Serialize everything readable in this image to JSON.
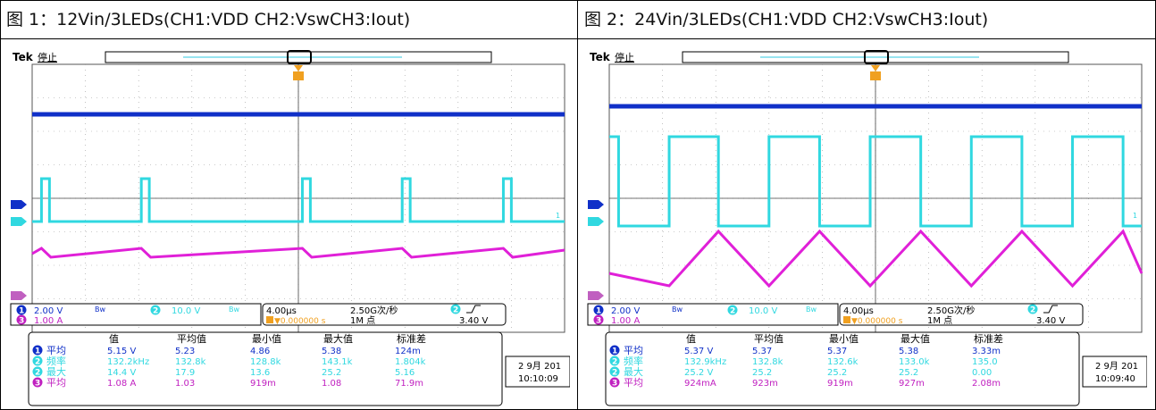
{
  "figures": [
    {
      "caption": "图 1：12Vin/3LEDs(CH1:VDD              CH2:VswCH3:Iout)",
      "scope": {
        "brand": "Tek",
        "state": "停止",
        "ch1_scale": "2.00 V",
        "ch2_scale": "10.0 V",
        "ch3_scale": "1.00 A",
        "timebase": "4.00µs",
        "trigger_pos": "▼0.000000 s",
        "sample_rate": "2.50G次/秒",
        "record_len": "1M 点",
        "trigger_level": "3.40 V",
        "date": "2 9月 201",
        "time": "10:10:09"
      },
      "meas_headers": [
        "值",
        "平均值",
        "最小值",
        "最大值",
        "标准差"
      ],
      "meas_rows": [
        {
          "ch": "1",
          "name": "平均",
          "vals": [
            "5.15 V",
            "5.23",
            "4.86",
            "5.38",
            "124m"
          ]
        },
        {
          "ch": "2",
          "name": "频率",
          "vals": [
            "132.2kHz",
            "132.8k",
            "128.8k",
            "143.1k",
            "1.804k"
          ]
        },
        {
          "ch": "2",
          "name": "最大",
          "vals": [
            "14.4 V",
            "17.9",
            "13.6",
            "25.2",
            "5.16"
          ]
        },
        {
          "ch": "3",
          "name": "平均",
          "vals": [
            "1.08 A",
            "1.03",
            "919m",
            "1.08",
            "71.9m"
          ]
        }
      ]
    },
    {
      "caption": "图 2：24Vin/3LEDs(CH1:VDD              CH2:VswCH3:Iout)",
      "scope": {
        "brand": "Tek",
        "state": "停止",
        "ch1_scale": "2.00 V",
        "ch2_scale": "10.0 V",
        "ch3_scale": "1.00 A",
        "timebase": "4.00µs",
        "trigger_pos": "▼0.000000 s",
        "sample_rate": "2.50G次/秒",
        "record_len": "1M 点",
        "trigger_level": "3.40 V",
        "date": "2 9月 201",
        "time": "10:09:40"
      },
      "meas_headers": [
        "值",
        "平均值",
        "最小值",
        "最大值",
        "标准差"
      ],
      "meas_rows": [
        {
          "ch": "1",
          "name": "平均",
          "vals": [
            "5.37 V",
            "5.37",
            "5.37",
            "5.38",
            "3.33m"
          ]
        },
        {
          "ch": "2",
          "name": "频率",
          "vals": [
            "132.9kHz",
            "132.8k",
            "132.6k",
            "133.0k",
            "135.0"
          ]
        },
        {
          "ch": "2",
          "name": "最大",
          "vals": [
            "25.2 V",
            "25.2",
            "25.2",
            "25.2",
            "0.00"
          ]
        },
        {
          "ch": "3",
          "name": "平均",
          "vals": [
            "924mA",
            "923m",
            "919m",
            "927m",
            "2.08m"
          ]
        }
      ]
    }
  ],
  "chart_data": [
    {
      "type": "line",
      "x_unit": "µs",
      "x_range": [
        -20,
        20
      ],
      "series": [
        {
          "name": "1",
          "color": "#1030c8",
          "shape": "dc",
          "value_V": 5.15
        },
        {
          "name": "2",
          "color": "#30d8e0",
          "shape": "pulse",
          "period_us": 7.56,
          "high_V": 14.4,
          "pulse_width_us": 0.6
        },
        {
          "name": "3",
          "color": "#e020d8",
          "shape": "sawtooth",
          "mean_A": 1.08
        }
      ]
    },
    {
      "type": "line",
      "x_unit": "µs",
      "x_range": [
        -20,
        20
      ],
      "series": [
        {
          "name": "1",
          "color": "#1030c8",
          "shape": "dc",
          "value_V": 5.37
        },
        {
          "name": "2",
          "color": "#30d8e0",
          "shape": "pulse",
          "period_us": 7.52,
          "high_V": 25.2,
          "duty": 0.5
        },
        {
          "name": "3",
          "color": "#e020d8",
          "shape": "triangle",
          "mean_A": 0.924
        }
      ]
    }
  ]
}
